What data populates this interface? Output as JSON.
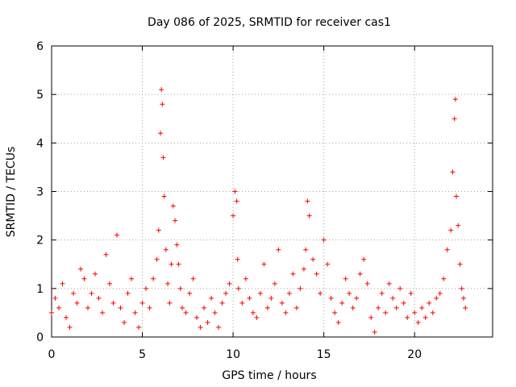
{
  "chart_data": {
    "type": "scatter",
    "title": "Day 086 of 2025, SRMTID for receiver cas1",
    "xlabel": "GPS time / hours",
    "ylabel": "SRMTID / TECUs",
    "xlim": [
      0,
      24.3
    ],
    "ylim": [
      0,
      6
    ],
    "x_ticks": [
      0,
      5,
      10,
      15,
      20
    ],
    "y_ticks": [
      0,
      1,
      2,
      3,
      4,
      5,
      6
    ],
    "grid": true,
    "marker": "+",
    "color": "#ff0000",
    "series": [
      {
        "name": "SRMTID",
        "x": [
          0.0,
          0.2,
          0.4,
          0.6,
          0.8,
          1.0,
          1.2,
          1.4,
          1.6,
          1.8,
          2.0,
          2.2,
          2.4,
          2.6,
          2.8,
          3.0,
          3.2,
          3.4,
          3.6,
          3.8,
          4.0,
          4.2,
          4.4,
          4.6,
          4.8,
          5.0,
          5.2,
          5.4,
          5.6,
          5.8,
          5.9,
          6.0,
          6.05,
          6.1,
          6.15,
          6.2,
          6.3,
          6.4,
          6.5,
          6.6,
          6.7,
          6.8,
          6.9,
          7.0,
          7.1,
          7.2,
          7.4,
          7.6,
          7.8,
          8.0,
          8.2,
          8.4,
          8.6,
          8.8,
          9.0,
          9.2,
          9.4,
          9.6,
          9.8,
          10.0,
          10.1,
          10.2,
          10.25,
          10.3,
          10.5,
          10.7,
          10.9,
          11.1,
          11.3,
          11.5,
          11.7,
          11.9,
          12.1,
          12.3,
          12.5,
          12.7,
          12.9,
          13.1,
          13.3,
          13.5,
          13.7,
          13.9,
          14.0,
          14.1,
          14.2,
          14.4,
          14.6,
          14.8,
          15.0,
          15.2,
          15.4,
          15.6,
          15.8,
          16.0,
          16.2,
          16.4,
          16.6,
          16.8,
          17.0,
          17.2,
          17.4,
          17.6,
          17.8,
          18.0,
          18.2,
          18.4,
          18.6,
          18.8,
          19.0,
          19.2,
          19.4,
          19.6,
          19.8,
          20.0,
          20.2,
          20.4,
          20.6,
          20.8,
          21.0,
          21.2,
          21.4,
          21.6,
          21.8,
          22.0,
          22.1,
          22.2,
          22.25,
          22.3,
          22.4,
          22.5,
          22.6,
          22.7,
          22.8
        ],
        "y": [
          0.5,
          0.8,
          0.6,
          1.1,
          0.4,
          0.2,
          0.9,
          0.7,
          1.4,
          1.2,
          0.6,
          0.9,
          1.3,
          0.8,
          0.5,
          1.7,
          1.1,
          0.7,
          2.1,
          0.6,
          0.3,
          0.9,
          1.2,
          0.5,
          0.2,
          0.7,
          1.0,
          0.6,
          1.2,
          1.6,
          2.2,
          4.2,
          5.1,
          4.8,
          3.7,
          2.9,
          1.8,
          1.1,
          0.7,
          1.5,
          2.7,
          2.4,
          1.9,
          1.5,
          1.0,
          0.6,
          0.5,
          0.9,
          1.2,
          0.4,
          0.2,
          0.6,
          0.3,
          0.8,
          0.5,
          0.2,
          0.7,
          0.9,
          1.1,
          2.5,
          3.0,
          2.8,
          1.6,
          1.0,
          0.7,
          1.2,
          0.8,
          0.5,
          0.4,
          0.9,
          1.5,
          0.6,
          0.8,
          1.1,
          1.8,
          0.7,
          0.5,
          0.9,
          1.3,
          0.6,
          1.0,
          1.4,
          1.8,
          2.8,
          2.5,
          1.6,
          1.3,
          0.9,
          2.0,
          1.5,
          0.8,
          0.5,
          0.3,
          0.7,
          1.2,
          0.9,
          0.6,
          0.8,
          1.3,
          1.6,
          1.1,
          0.4,
          0.1,
          0.6,
          0.9,
          0.5,
          1.1,
          0.8,
          0.6,
          1.0,
          0.7,
          0.4,
          0.9,
          0.5,
          0.3,
          0.6,
          0.4,
          0.7,
          0.5,
          0.8,
          0.9,
          1.2,
          1.8,
          2.2,
          3.4,
          4.5,
          4.9,
          2.9,
          2.3,
          1.5,
          1.0,
          0.8,
          0.6
        ]
      }
    ]
  }
}
